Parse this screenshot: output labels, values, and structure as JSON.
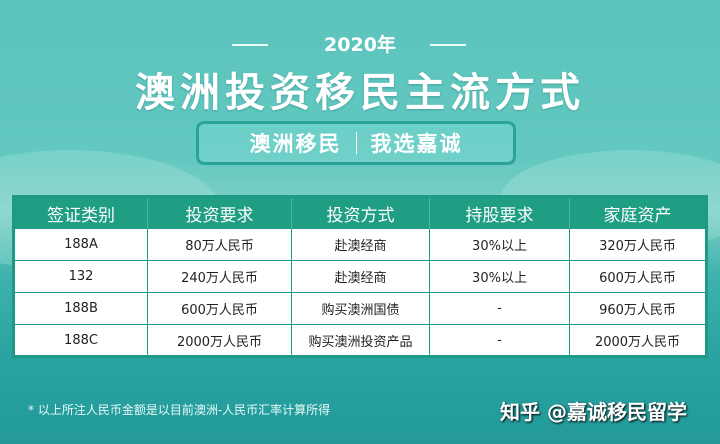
{
  "header": {
    "year": "2020年",
    "title": "澳洲投资移民主流方式",
    "banner_left": "澳洲移民",
    "banner_right": "我选嘉诚"
  },
  "table": {
    "columns": [
      "签证类别",
      "投资要求",
      "投资方式",
      "持股要求",
      "家庭资产"
    ],
    "rows": [
      [
        "188A",
        "80万人民币",
        "赴澳经商",
        "30%以上",
        "320万人民币"
      ],
      [
        "132",
        "240万人民币",
        "赴澳经商",
        "30%以上",
        "600万人民币"
      ],
      [
        "188B",
        "600万人民币",
        "购买澳洲国债",
        "-",
        "960万人民币"
      ],
      [
        "188C",
        "2000万人民币",
        "购买澳洲投资产品",
        "-",
        "2000万人民币"
      ]
    ]
  },
  "footnote": "* 以上所注人民币金额是以目前澳洲-人民币汇率计算所得",
  "watermark": "知乎 @嘉诚移民留学",
  "colors": {
    "header_green": "#1f9e84",
    "background_teal": "#3fb2ad"
  }
}
